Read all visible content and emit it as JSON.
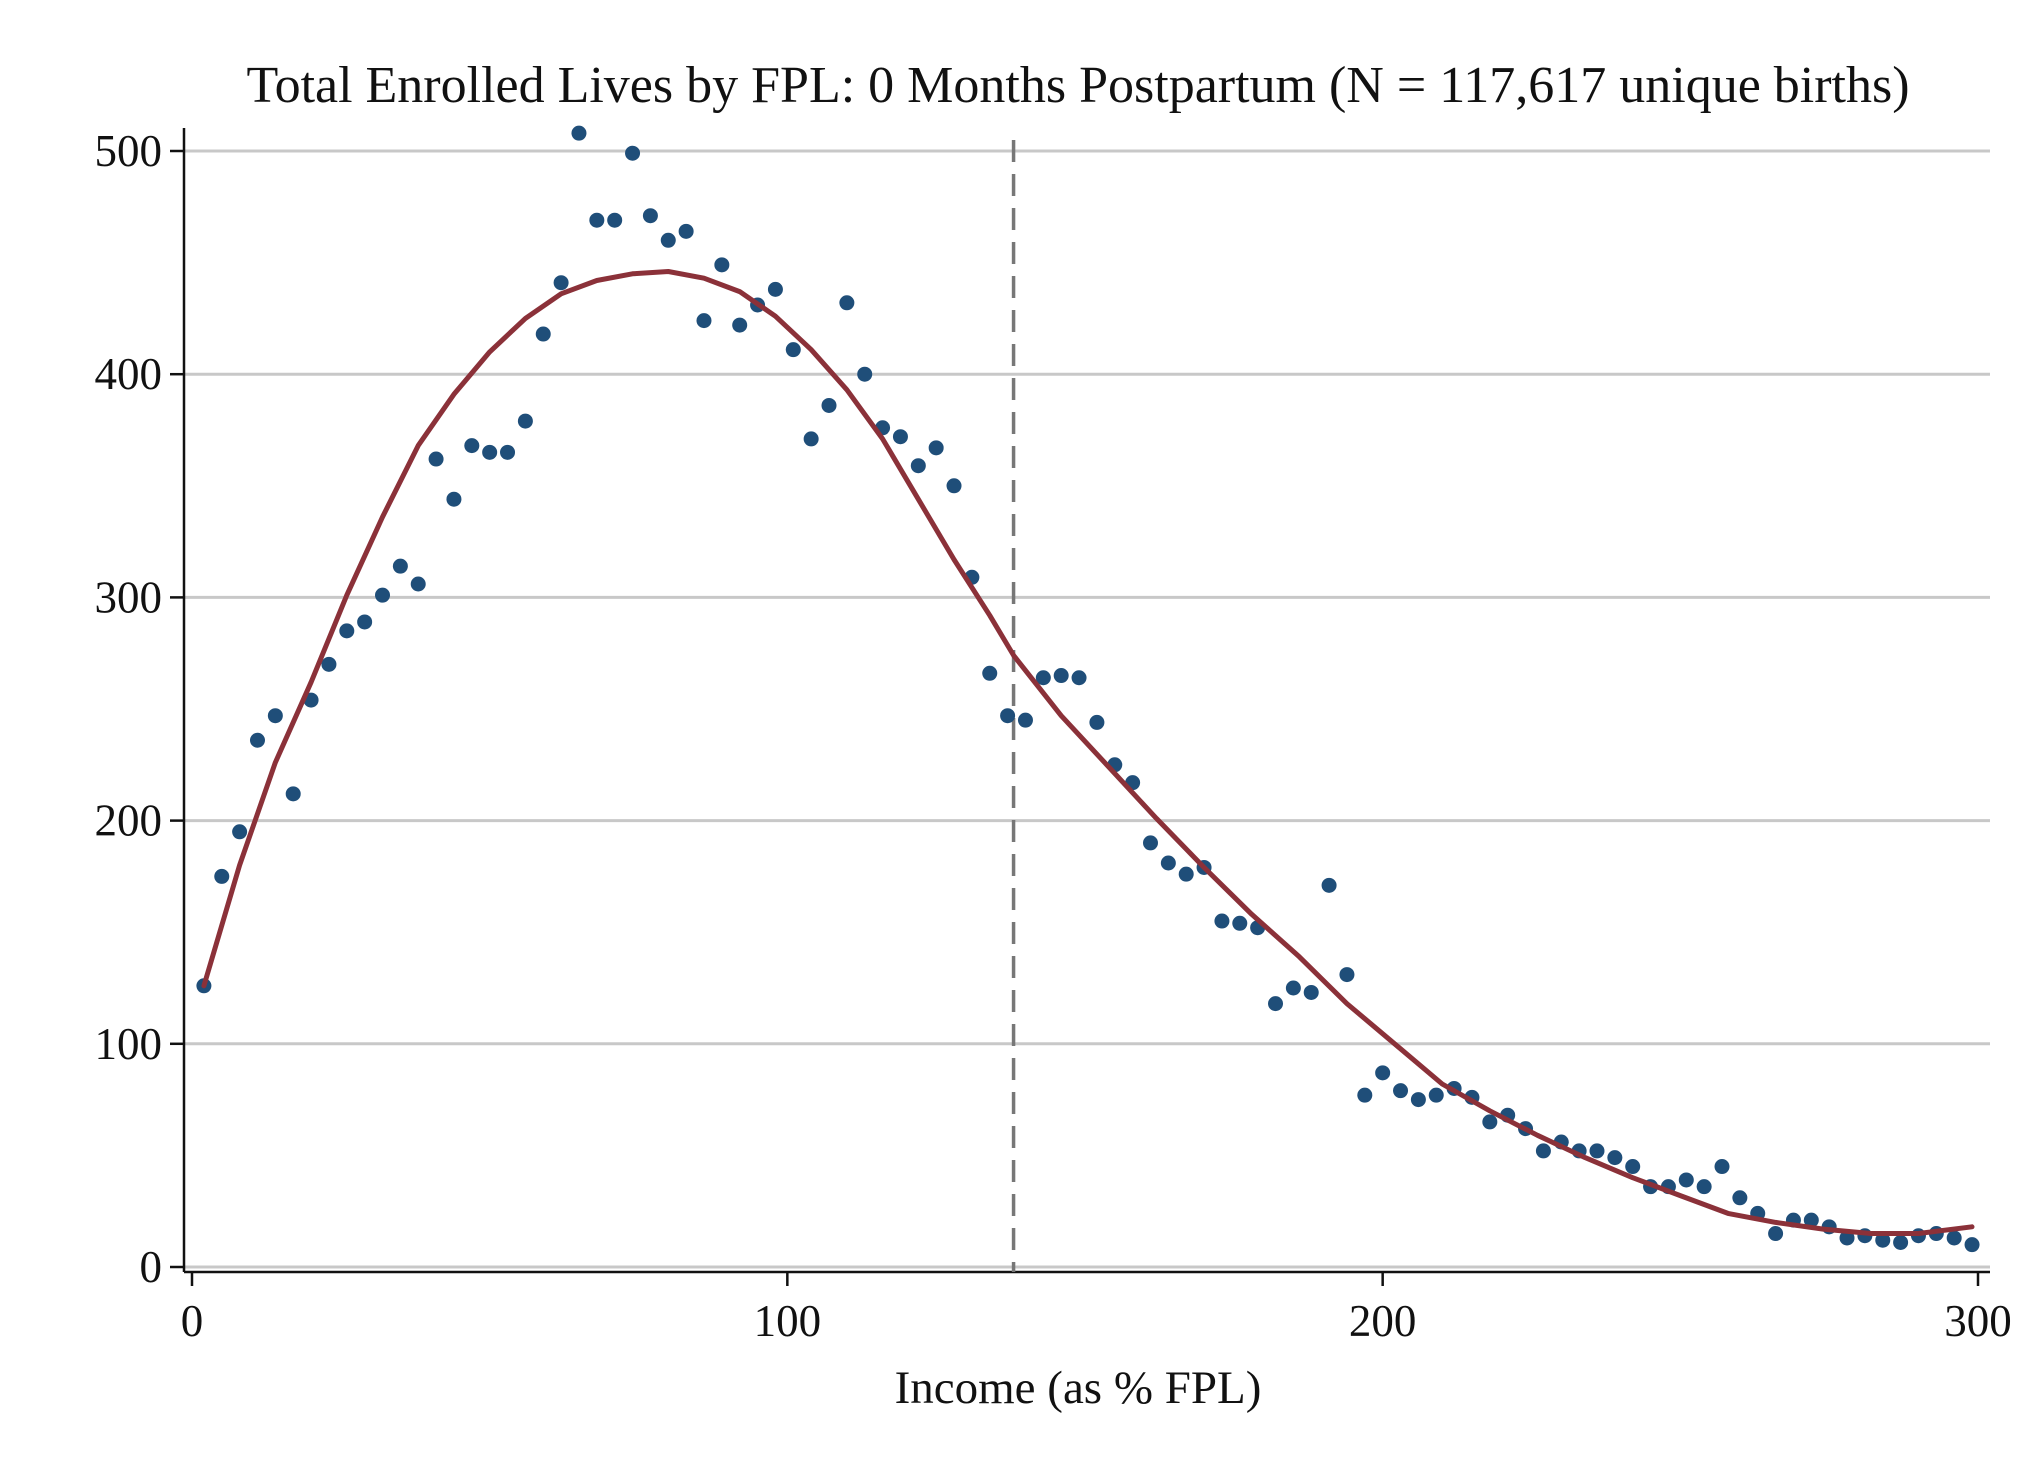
{
  "chart_data": {
    "type": "scatter",
    "title": "Total Enrolled Lives by FPL: 0 Months Postpartum (N = 117,617 unique births)",
    "xlabel": "Income (as % FPL)",
    "ylabel": "",
    "xlim": [
      0,
      300
    ],
    "ylim": [
      0,
      510
    ],
    "x_ticks": [
      0,
      100,
      200,
      300
    ],
    "y_ticks": [
      0,
      100,
      200,
      300,
      400,
      500
    ],
    "grid": "horizontal",
    "legend": "none",
    "cutoff_x": 138,
    "colors": {
      "points": "#1f4e79",
      "fit_line": "#8b3139",
      "cutoff_line": "#777777",
      "grid": "#c8c8c8",
      "axis": "#111111"
    },
    "series": [
      {
        "type": "scatter",
        "x": [
          2,
          5,
          8,
          11,
          14,
          17,
          20,
          23,
          26,
          29,
          32,
          35,
          38,
          41,
          44,
          47,
          50,
          53,
          56,
          59,
          62,
          65,
          68,
          71,
          74,
          77,
          80,
          83,
          86,
          89,
          92,
          95,
          98,
          101,
          104,
          107,
          110,
          113,
          116,
          119,
          122,
          125,
          128,
          131,
          134,
          137,
          140,
          143,
          146,
          149,
          152,
          155,
          158,
          161,
          164,
          167,
          170,
          173,
          176,
          179,
          182,
          185,
          188,
          191,
          194,
          197,
          200,
          203,
          206,
          209,
          212,
          215,
          218,
          221,
          224,
          227,
          230,
          233,
          236,
          239,
          242,
          245,
          248,
          251,
          254,
          257,
          260,
          263,
          266,
          269,
          272,
          275,
          278,
          281,
          284,
          287,
          290,
          293,
          296,
          299
        ],
        "y": [
          126,
          175,
          195,
          236,
          247,
          212,
          254,
          270,
          285,
          289,
          301,
          314,
          306,
          362,
          344,
          368,
          365,
          365,
          379,
          418,
          441,
          508,
          469,
          469,
          499,
          471,
          460,
          464,
          424,
          449,
          422,
          431,
          438,
          411,
          371,
          386,
          432,
          400,
          376,
          372,
          359,
          367,
          350,
          309,
          266,
          247,
          245,
          264,
          265,
          264,
          244,
          225,
          217,
          190,
          181,
          176,
          179,
          155,
          154,
          152,
          118,
          125,
          123,
          171,
          131,
          77,
          87,
          79,
          75,
          77,
          80,
          76,
          65,
          68,
          62,
          52,
          56,
          52,
          52,
          49,
          45,
          36,
          36,
          39,
          36,
          45,
          31,
          24,
          15,
          21,
          21,
          18,
          13,
          14,
          12,
          11,
          14,
          15,
          13,
          10
        ]
      },
      {
        "type": "line",
        "x": [
          2,
          8,
          14,
          20,
          26,
          32,
          38,
          44,
          50,
          56,
          62,
          68,
          74,
          80,
          86,
          92,
          98,
          104,
          110,
          116,
          122,
          128,
          134,
          138,
          146,
          154,
          162,
          170,
          178,
          186,
          194,
          202,
          210,
          218,
          226,
          234,
          242,
          250,
          258,
          266,
          274,
          282,
          290,
          299
        ],
        "y": [
          126,
          180,
          226,
          262,
          301,
          336,
          368,
          391,
          410,
          425,
          436,
          442,
          445,
          446,
          443,
          437,
          426,
          411,
          393,
          371,
          344,
          317,
          292,
          274,
          247,
          224,
          201,
          179,
          158,
          139,
          118,
          100,
          82,
          70,
          59,
          49,
          40,
          32,
          24,
          20,
          17,
          15,
          15,
          18
        ]
      }
    ]
  }
}
